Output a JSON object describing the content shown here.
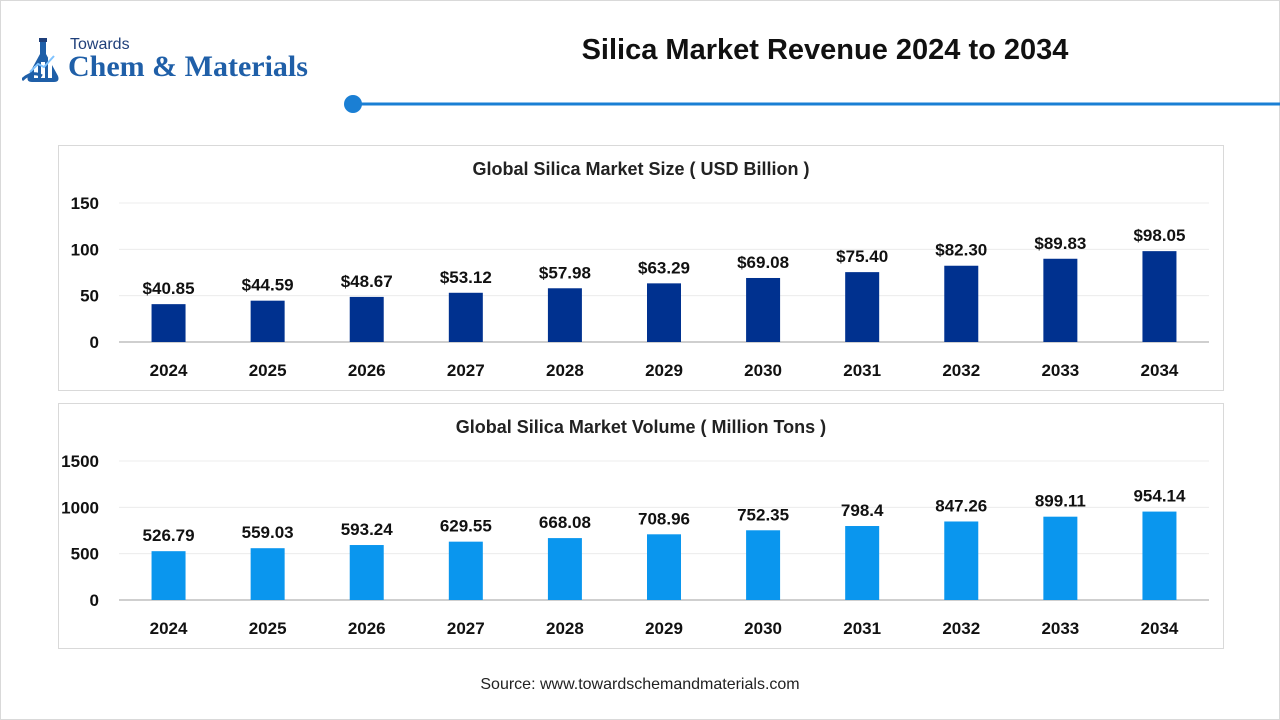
{
  "brand": {
    "top_word": "Towards",
    "name": "Chem & Materials"
  },
  "header": {
    "title": "Silica Market Revenue 2024 to 2034"
  },
  "colors": {
    "revenue_bar": "#00318f",
    "volume_bar": "#0a96ee",
    "accent_line": "#1a7fd4"
  },
  "chart_data": [
    {
      "type": "bar",
      "title": "Global Silica Market Size ( USD Billion )",
      "categories": [
        "2024",
        "2025",
        "2026",
        "2027",
        "2028",
        "2029",
        "2030",
        "2031",
        "2032",
        "2033",
        "2034"
      ],
      "values": [
        40.85,
        44.59,
        48.67,
        53.12,
        57.98,
        63.29,
        69.08,
        75.4,
        82.3,
        89.83,
        98.05
      ],
      "data_labels": [
        "$40.85",
        "$44.59",
        "$48.67",
        "$53.12",
        "$57.98",
        "$63.29",
        "$69.08",
        "$75.40",
        "$82.30",
        "$89.83",
        "$98.05"
      ],
      "yticks": [
        "0",
        "50",
        "100",
        "150"
      ],
      "ylim": [
        0,
        150
      ],
      "grid": true
    },
    {
      "type": "bar",
      "title": "Global Silica Market Volume ( Million Tons )",
      "categories": [
        "2024",
        "2025",
        "2026",
        "2027",
        "2028",
        "2029",
        "2030",
        "2031",
        "2032",
        "2033",
        "2034"
      ],
      "values": [
        526.79,
        559.03,
        593.24,
        629.55,
        668.08,
        708.96,
        752.35,
        798.4,
        847.26,
        899.11,
        954.14
      ],
      "data_labels": [
        "526.79",
        "559.03",
        "593.24",
        "629.55",
        "668.08",
        "708.96",
        "752.35",
        "798.4",
        "847.26",
        "899.11",
        "954.14"
      ],
      "yticks": [
        "0",
        "500",
        "1000",
        "1500"
      ],
      "ylim": [
        0,
        1500
      ],
      "grid": true
    }
  ],
  "footer": {
    "source": "Source: www.towardschemandmaterials.com"
  }
}
